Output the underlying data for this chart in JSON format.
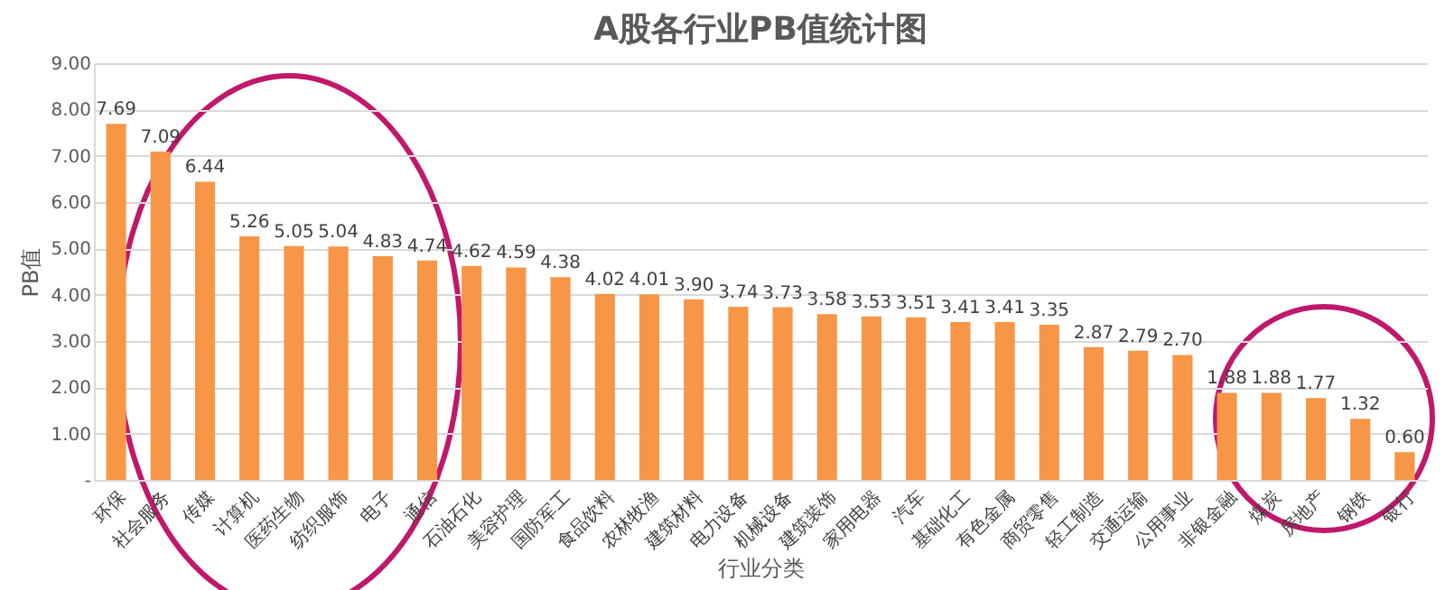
{
  "chart_data": {
    "type": "bar",
    "title": "A股各行业PB值统计图",
    "xlabel": "行业分类",
    "ylabel": "PB值",
    "categories": [
      "环保",
      "社会服务",
      "传媒",
      "计算机",
      "医药生物",
      "纺织服饰",
      "电子",
      "通信",
      "石油石化",
      "美容护理",
      "国防军工",
      "食品饮料",
      "农林牧渔",
      "建筑材料",
      "电力设备",
      "机械设备",
      "建筑装饰",
      "家用电器",
      "汽车",
      "基础化工",
      "有色金属",
      "商贸零售",
      "轻工制造",
      "交通运输",
      "公用事业",
      "非银金融",
      "煤炭",
      "房地产",
      "钢铁",
      "银行"
    ],
    "values": [
      7.69,
      7.09,
      6.44,
      5.26,
      5.05,
      5.04,
      4.83,
      4.74,
      4.62,
      4.59,
      4.38,
      4.02,
      4.01,
      3.9,
      3.74,
      3.73,
      3.58,
      3.53,
      3.51,
      3.41,
      3.41,
      3.35,
      2.87,
      2.79,
      2.7,
      1.88,
      1.88,
      1.77,
      1.32,
      0.6
    ],
    "color": "#f79646",
    "value_labels": [
      "7.69",
      "7.09",
      "6.44",
      "5.26",
      "5.05",
      "5.04",
      "4.83",
      "4.74",
      "4.62",
      "4.59",
      "4.38",
      "4.02",
      "4.01",
      "3.90",
      "3.74",
      "3.73",
      "3.58",
      "3.53",
      "3.51",
      "3.41",
      "3.41",
      "3.35",
      "2.87",
      "2.79",
      "2.70",
      "1.88",
      "1.88",
      "1.77",
      "1.32",
      "0.60"
    ],
    "grid": "y",
    "ylim": [
      0,
      9
    ],
    "yticks": [
      {
        "value": 0,
        "label": "-"
      },
      {
        "value": 1,
        "label": "1.00"
      },
      {
        "value": 2,
        "label": "2.00"
      },
      {
        "value": 3,
        "label": "3.00"
      },
      {
        "value": 4,
        "label": "4.00"
      },
      {
        "value": 5,
        "label": "5.00"
      },
      {
        "value": 6,
        "label": "6.00"
      },
      {
        "value": 7,
        "label": "7.00"
      },
      {
        "value": 8,
        "label": "8.00"
      },
      {
        "value": 9,
        "label": "9.00"
      }
    ]
  }
}
